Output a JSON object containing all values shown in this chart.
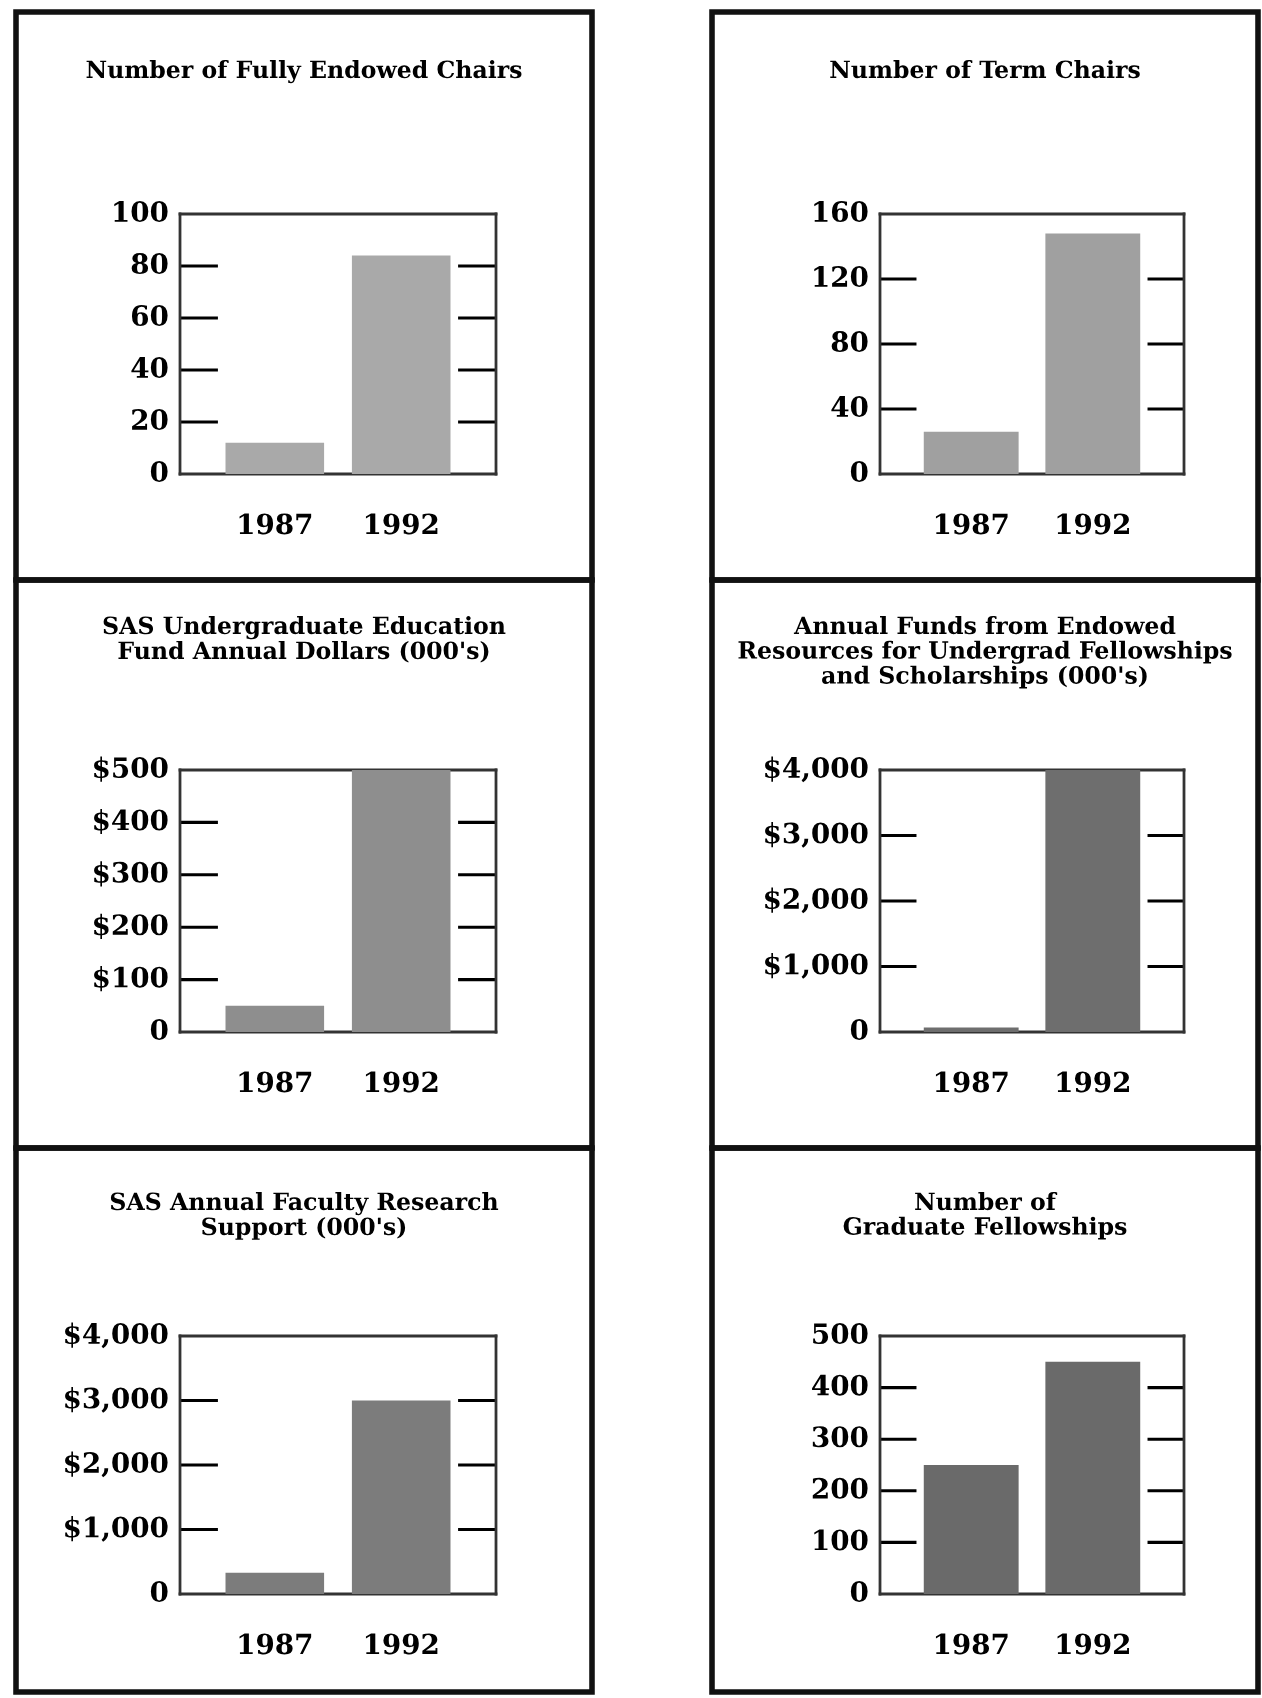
{
  "chart_data": [
    {
      "type": "bar",
      "title": "Number of Fully Endowed Chairs",
      "categories": [
        "1987",
        "1992"
      ],
      "values": [
        12,
        84
      ],
      "color": "#a9a9a9",
      "ylim": [
        0,
        100
      ],
      "yticks": [
        0,
        20,
        40,
        60,
        80,
        100
      ],
      "grid": false
    },
    {
      "type": "bar",
      "title": "Number of Term Chairs",
      "categories": [
        "1987",
        "1992"
      ],
      "values": [
        26,
        148
      ],
      "color": "#a0a0a0",
      "ylim": [
        0,
        160
      ],
      "yticks": [
        0,
        40,
        80,
        120,
        160
      ],
      "grid": false
    },
    {
      "type": "bar",
      "title": "SAS Undergraduate Education\nFund Annual Dollars (000's)",
      "categories": [
        "1987",
        "1992"
      ],
      "values": [
        50,
        500
      ],
      "color": "#8e8e8e",
      "ylim": [
        0,
        500
      ],
      "yticks": [
        0,
        {
          "value": 100,
          "label": "$100"
        },
        {
          "value": 200,
          "label": "$200"
        },
        {
          "value": 300,
          "label": "$300"
        },
        {
          "value": 400,
          "label": "$400"
        },
        {
          "value": 500,
          "label": "$500"
        }
      ],
      "grid": false
    },
    {
      "type": "bar",
      "title": "Annual Funds from Endowed\nResources for Undergrad Fellowships\nand Scholarships (000's)",
      "categories": [
        "1987",
        "1992"
      ],
      "values": [
        70,
        4000
      ],
      "color": "#6e6e6e",
      "ylim": [
        0,
        4000
      ],
      "yticks": [
        0,
        {
          "value": 1000,
          "label": "$1,000"
        },
        {
          "value": 2000,
          "label": "$2,000"
        },
        {
          "value": 3000,
          "label": "$3,000"
        },
        {
          "value": 4000,
          "label": "$4,000"
        }
      ],
      "grid": false
    },
    {
      "type": "bar",
      "title": "SAS Annual Faculty Research\nSupport (000's)",
      "categories": [
        "1987",
        "1992"
      ],
      "values": [
        330,
        3000
      ],
      "color": "#7c7c7c",
      "ylim": [
        0,
        4000
      ],
      "yticks": [
        0,
        {
          "value": 1000,
          "label": "$1,000"
        },
        {
          "value": 2000,
          "label": "$2,000"
        },
        {
          "value": 3000,
          "label": "$3,000"
        },
        {
          "value": 4000,
          "label": "$4,000"
        }
      ],
      "grid": false
    },
    {
      "type": "bar",
      "title": "Number of\nGraduate Fellowships",
      "categories": [
        "1987",
        "1992"
      ],
      "values": [
        250,
        450
      ],
      "color": "#6a6a6a",
      "ylim": [
        0,
        500
      ],
      "yticks": [
        0,
        100,
        200,
        300,
        400,
        500
      ],
      "grid": false
    }
  ]
}
